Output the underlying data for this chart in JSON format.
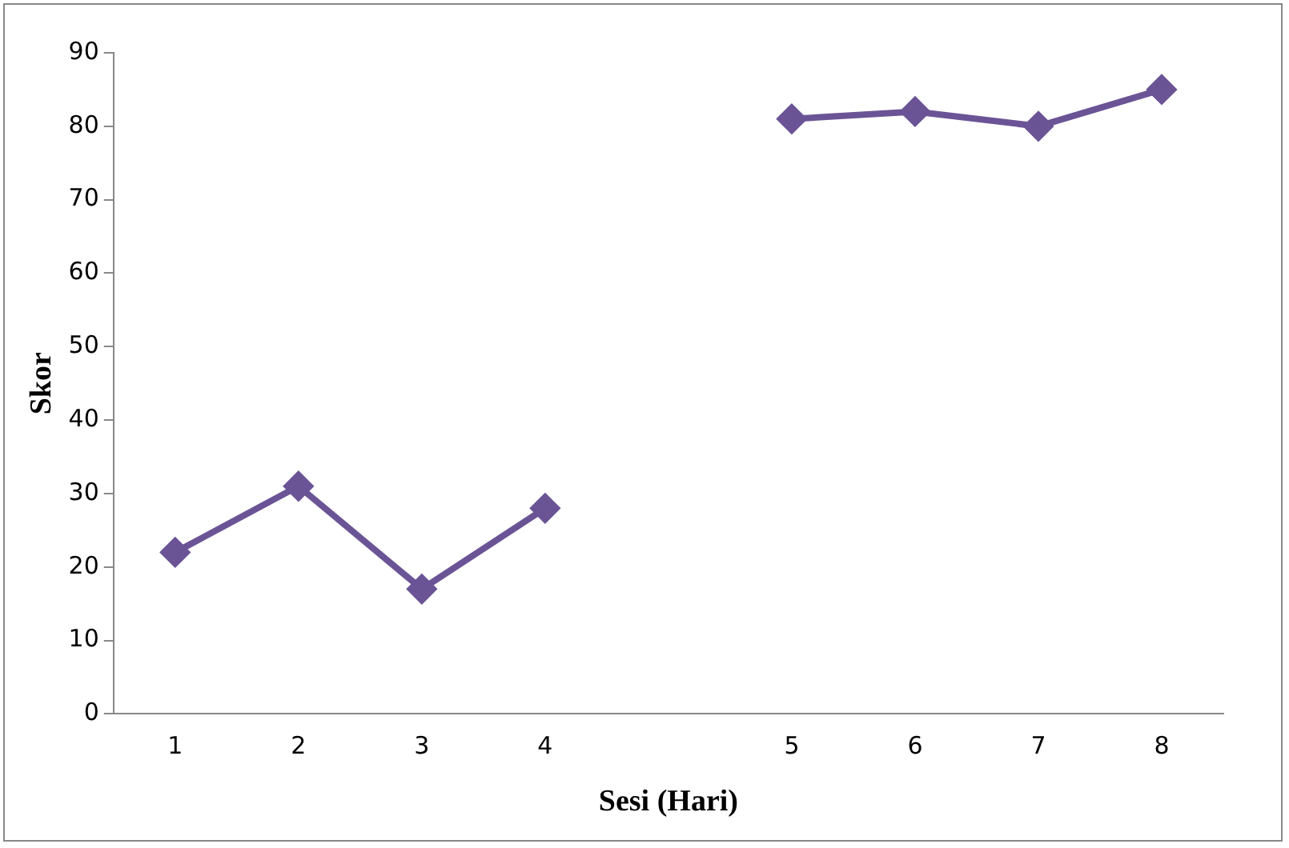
{
  "chart_data": {
    "type": "line",
    "xlabel": "Sesi (Hari)",
    "ylabel": "Skor",
    "categories": [
      "1",
      "2",
      "3",
      "4",
      null,
      "5",
      "6",
      "7",
      "8"
    ],
    "series": [
      {
        "color": "#6a5496",
        "values": [
          22,
          31,
          17,
          28,
          null,
          81,
          82,
          80,
          85
        ]
      }
    ],
    "ylim": [
      0,
      90
    ],
    "yticks": [
      0,
      10,
      20,
      30,
      40,
      50,
      60,
      70,
      80,
      90
    ],
    "grid": false,
    "legend": false,
    "marker": "diamond",
    "line_style": "solid"
  }
}
